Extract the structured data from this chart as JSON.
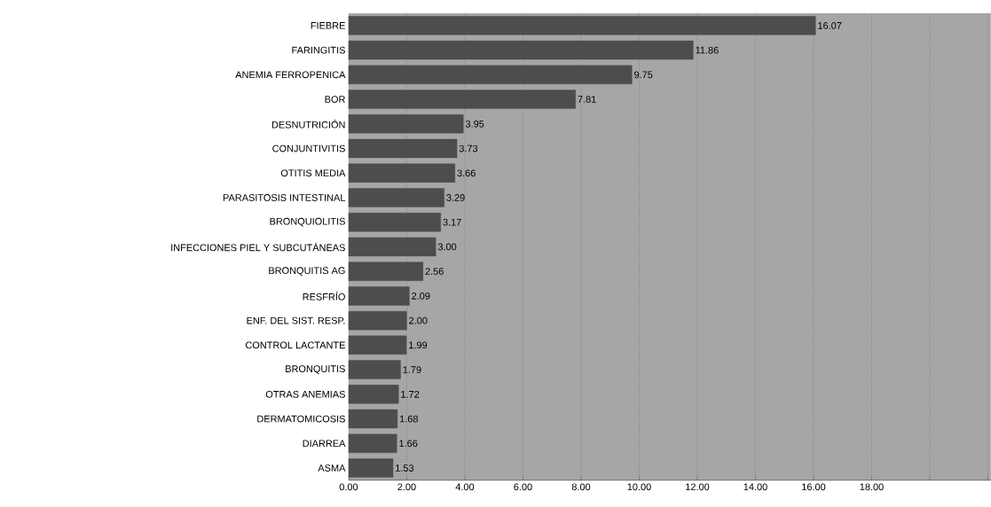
{
  "chart_data": {
    "type": "bar",
    "orientation": "horizontal",
    "color": "#4d4d4d",
    "grid": "x",
    "categories": [
      "FIEBRE",
      "FARINGITIS",
      "ANEMIA FERROPENICA",
      "BOR",
      "DESNUTRICIÓN",
      "CONJUNTIVITIS",
      "OTITIS MEDIA",
      "PARASITOSIS INTESTINAL",
      "BRONQUIOLITIS",
      "INFECCIONES PIEL Y SUBCUTÁNEAS",
      "BRONQUITIS AG",
      "RESFRÍO",
      "ENF. DEL SIST. RESP.",
      "CONTROL LACTANTE",
      "BRONQUITIS",
      "OTRAS ANEMIAS",
      "DERMATOMICOSIS",
      "DIARREA",
      "ASMA"
    ],
    "values": [
      16.07,
      11.86,
      9.75,
      7.81,
      3.95,
      3.73,
      3.66,
      3.29,
      3.17,
      3.0,
      2.56,
      2.09,
      2.0,
      1.99,
      1.79,
      1.72,
      1.68,
      1.66,
      1.53
    ],
    "value_labels": [
      "16.07",
      "11.86",
      "9.75",
      "7.81",
      "3.95",
      "3.73",
      "3.66",
      "3.29",
      "3.17",
      "3.00",
      "2.56",
      "2.09",
      "2.00",
      "1.99",
      "1.79",
      "1.72",
      "1.68",
      "1.66",
      "1.53"
    ],
    "xlim": [
      0,
      22.1
    ],
    "xticks": [
      {
        "value": 0,
        "label": "0.00"
      },
      {
        "value": 2,
        "label": "2.00"
      },
      {
        "value": 4,
        "label": "4.00"
      },
      {
        "value": 6,
        "label": "6.00"
      },
      {
        "value": 8,
        "label": "8.00"
      },
      {
        "value": 10,
        "label": "10.00"
      },
      {
        "value": 12,
        "label": "12.00"
      },
      {
        "value": 14,
        "label": "14.00"
      },
      {
        "value": 16,
        "label": "16.00"
      },
      {
        "value": 18,
        "label": "18.00"
      },
      {
        "value": 20,
        "label": null
      },
      {
        "value": 22,
        "label": null
      }
    ]
  }
}
